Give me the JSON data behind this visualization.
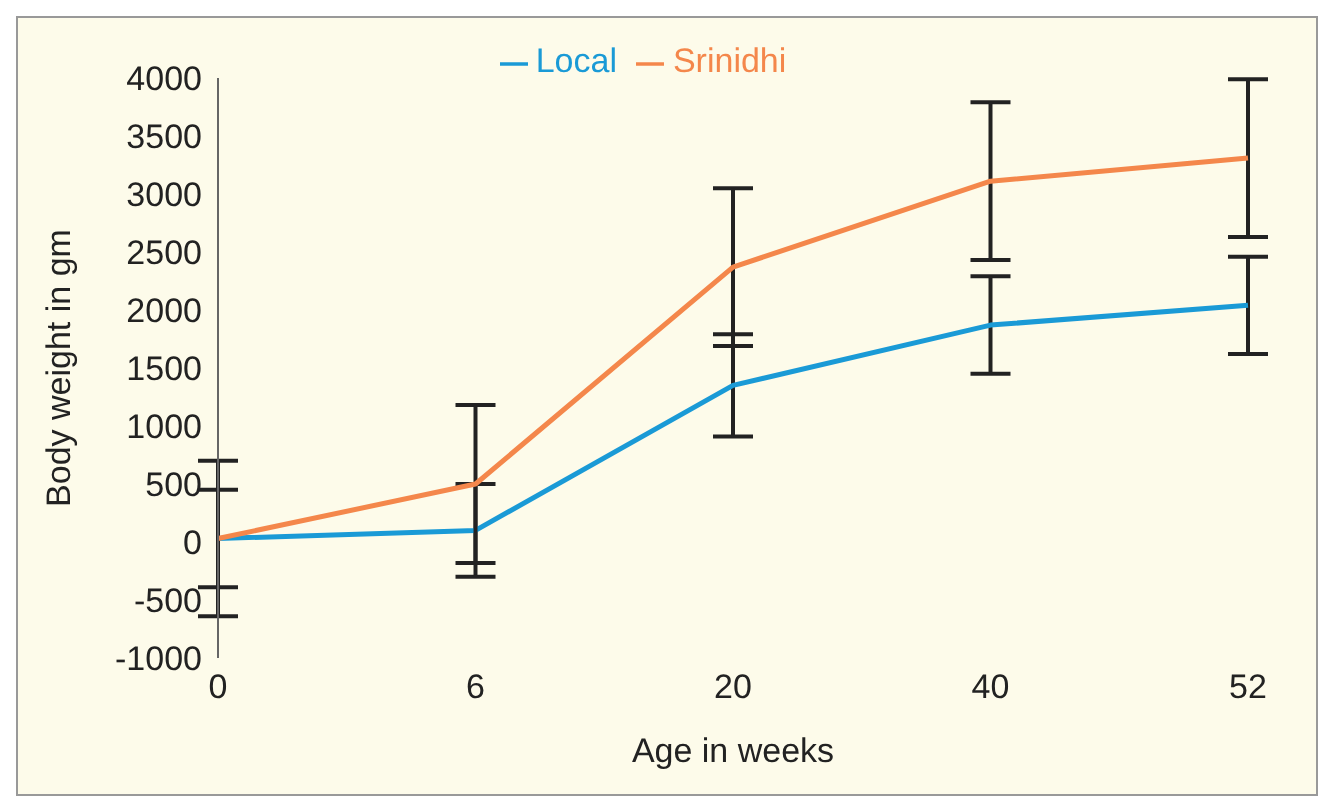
{
  "chart_data": {
    "type": "line",
    "xlabel": "Age in weeks",
    "ylabel": "Body weight in gm",
    "categories": [
      "0",
      "6",
      "20",
      "40",
      "52"
    ],
    "series": [
      {
        "name": "Local",
        "color": "#1a9ad6",
        "values": [
          30,
          100,
          1350,
          1870,
          2040
        ],
        "errors": [
          420,
          400,
          440,
          420,
          420
        ]
      },
      {
        "name": "Srinidhi",
        "color": "#f4874b",
        "values": [
          30,
          500,
          2370,
          3110,
          3310
        ],
        "errors": [
          670,
          680,
          680,
          680,
          680
        ]
      }
    ],
    "ylim": [
      -1000,
      4000
    ],
    "yticks": [
      -1000,
      -500,
      0,
      500,
      1000,
      1500,
      2000,
      2500,
      3000,
      3500,
      4000
    ],
    "grid": false,
    "legend": "top",
    "marker": "none"
  }
}
